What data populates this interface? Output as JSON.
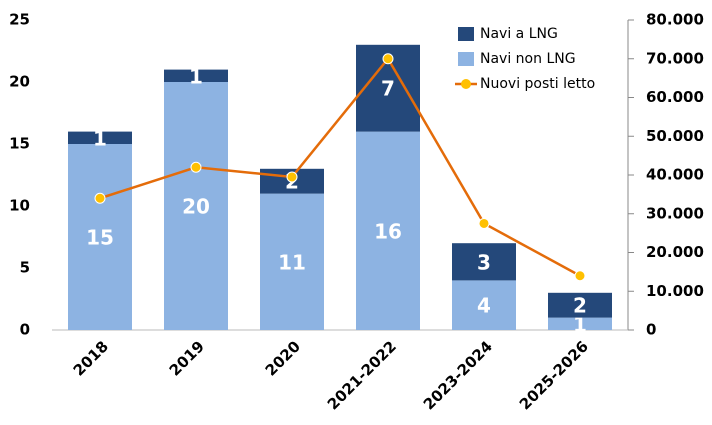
{
  "chart_data": {
    "type": "bar",
    "categories": [
      "2018",
      "2019",
      "2020",
      "2021-2022",
      "2023-2024",
      "2025-2026"
    ],
    "series": [
      {
        "name": "Navi non LNG",
        "color": "#8db3e2",
        "values": [
          15,
          20,
          11,
          16,
          4,
          1
        ]
      },
      {
        "name": "Navi a LNG",
        "color": "#24487a",
        "values": [
          1,
          1,
          2,
          7,
          3,
          2
        ]
      },
      {
        "name": "Nuovi posti letto",
        "type": "line",
        "axis": "y2",
        "color": "#e46c0a",
        "marker_color": "#ffc000",
        "values": [
          34000,
          42000,
          39500,
          70000,
          27500,
          14000
        ]
      }
    ],
    "stacked": true,
    "ylim": [
      0,
      25
    ],
    "yticks": [
      0,
      5,
      10,
      15,
      20,
      25
    ],
    "y2lim": [
      0,
      80000
    ],
    "y2ticks": [
      0,
      {
        "value": 10000,
        "label": "10.000"
      },
      {
        "value": 20000,
        "label": "20.000"
      },
      {
        "value": 30000,
        "label": "30.000"
      },
      {
        "value": 40000,
        "label": "40.000"
      },
      {
        "value": 50000,
        "label": "50.000"
      },
      {
        "value": 60000,
        "label": "60.000"
      },
      {
        "value": 70000,
        "label": "70.000"
      },
      {
        "value": 80000,
        "label": "80.000"
      }
    ],
    "legend": "upper right"
  }
}
